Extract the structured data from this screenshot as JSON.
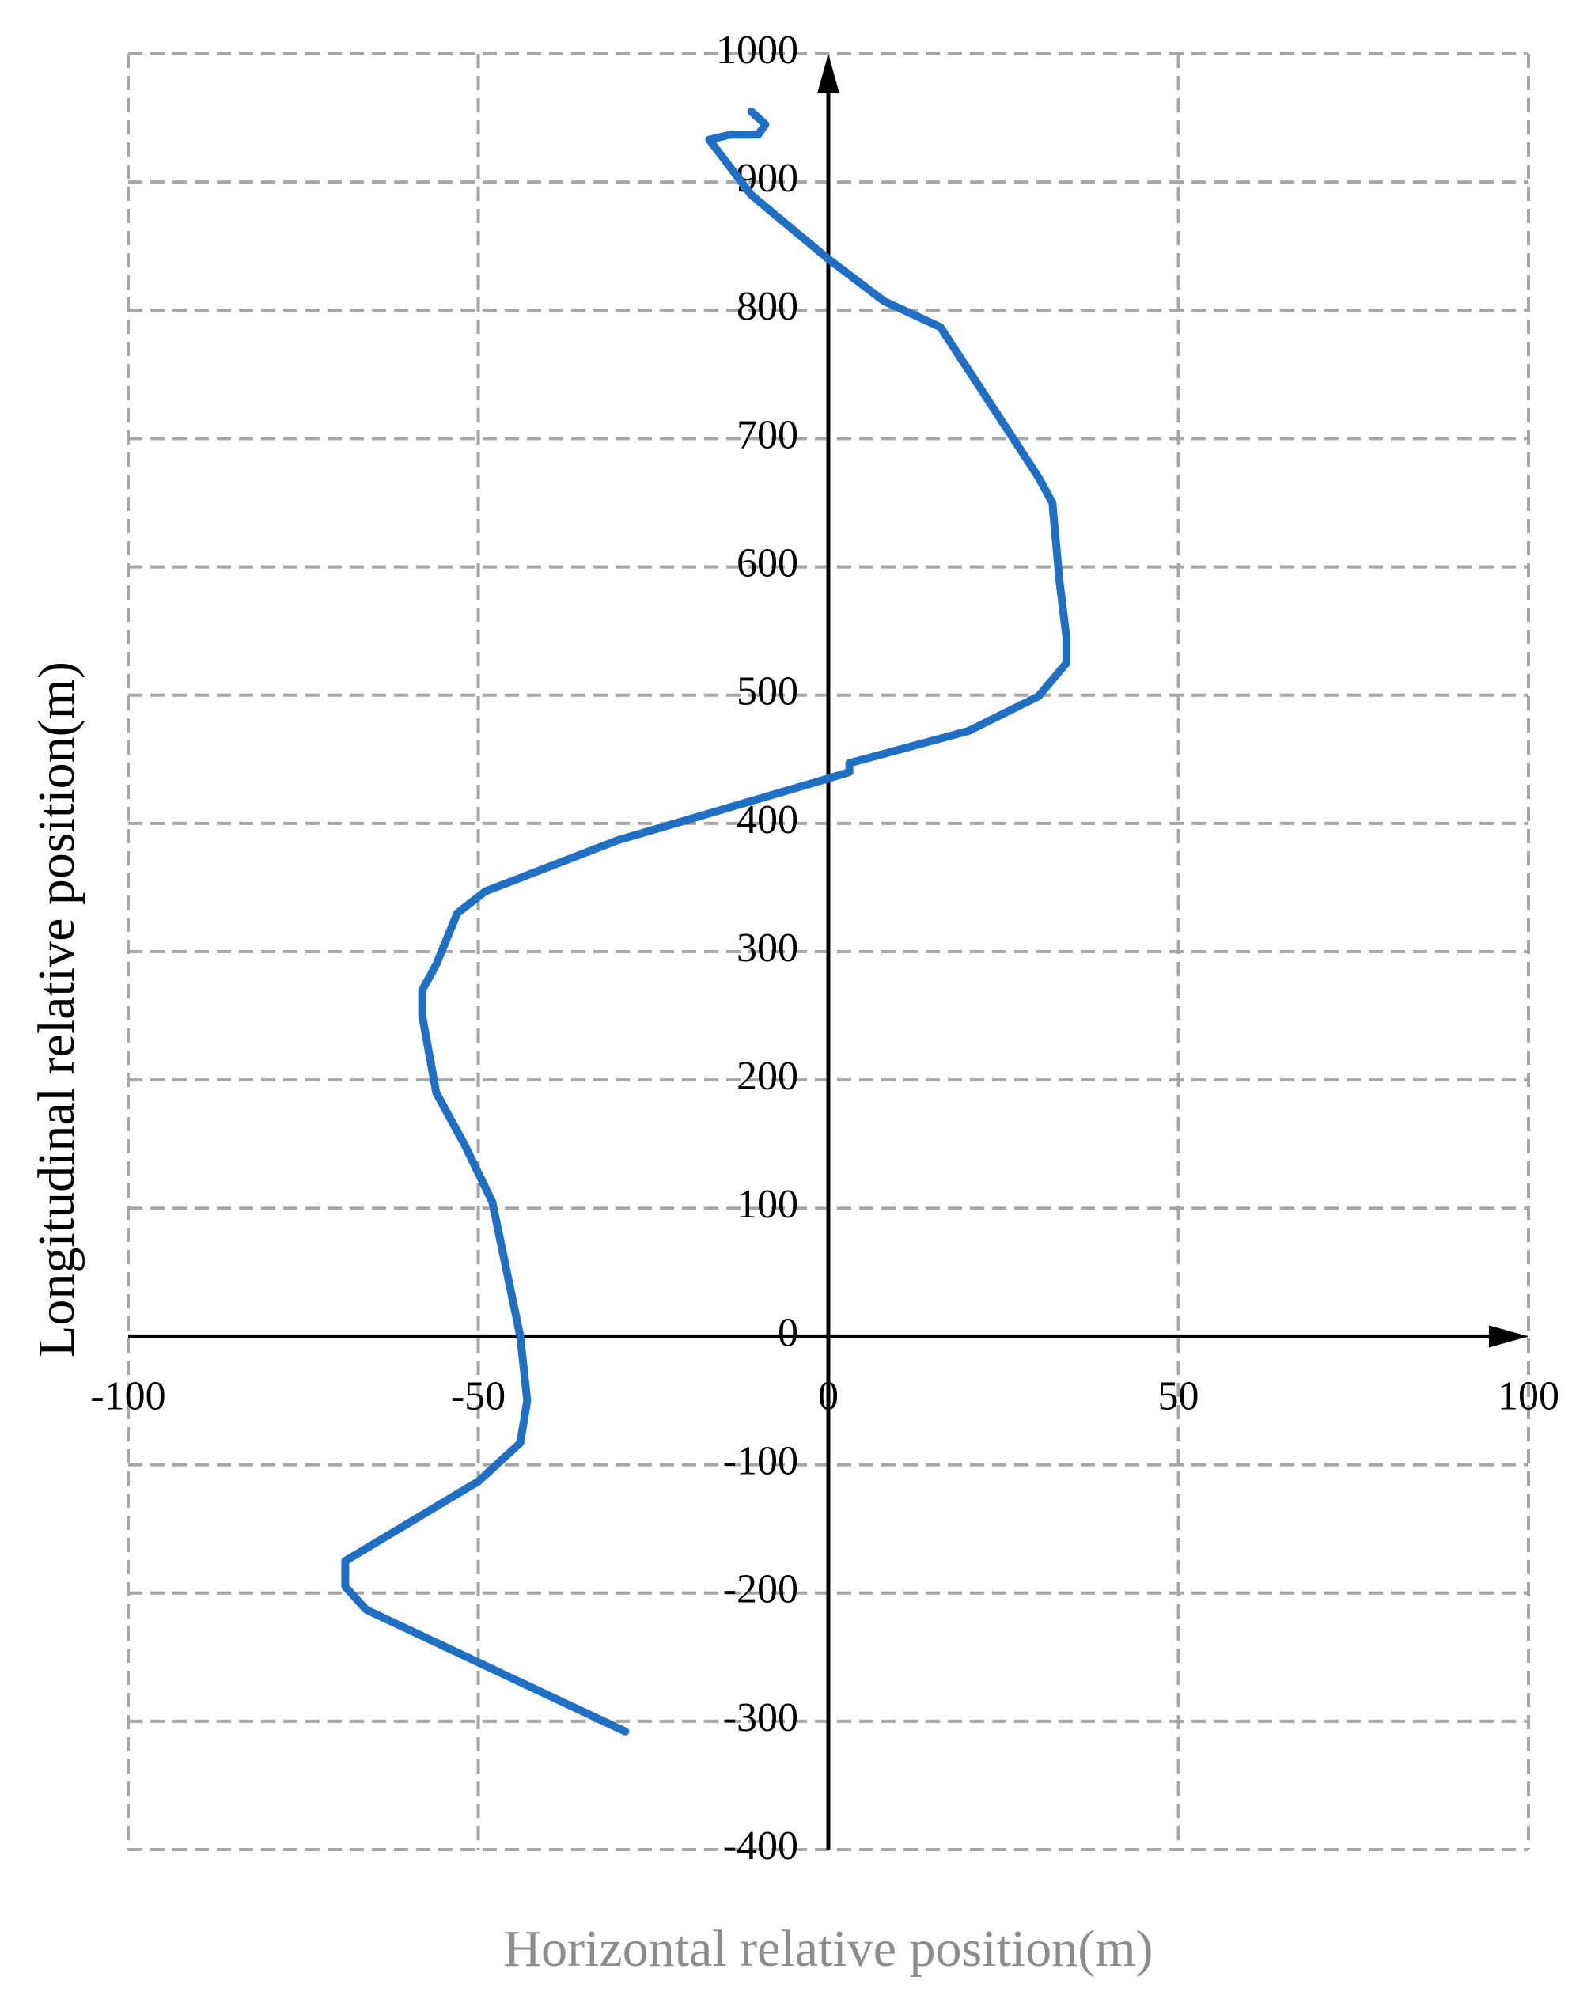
{
  "chart_data": {
    "type": "line",
    "x_label": "Horizontal relative position(m)",
    "y_label": "Longitudinal relative position(m)",
    "x": [
      -29,
      -66,
      -69,
      -69,
      -50,
      -44,
      -43,
      -44,
      -48,
      -52,
      -56,
      -58,
      -58,
      -56,
      -53,
      -49,
      -30,
      0,
      3,
      3,
      20,
      30,
      34,
      34,
      33,
      32,
      30,
      16,
      8,
      0,
      -11,
      -17,
      -14,
      -10,
      -9,
      -11
    ],
    "values": [
      -308,
      -213,
      -195,
      -175,
      -113,
      -83,
      -50,
      0,
      105,
      150,
      190,
      250,
      270,
      290,
      330,
      347,
      387,
      435,
      440,
      447,
      472,
      499,
      525,
      545,
      590,
      650,
      670,
      787,
      807,
      840,
      890,
      933,
      937,
      937,
      945,
      955
    ],
    "color": "#1f6fc4",
    "xlim": [
      -100,
      100
    ],
    "xticks": [
      -100,
      -50,
      0,
      50,
      100
    ],
    "ylim": [
      -400,
      1000
    ],
    "yticks": [
      -400,
      -300,
      -200,
      -100,
      0,
      100,
      200,
      300,
      400,
      500,
      600,
      700,
      800,
      900,
      1000
    ],
    "grid": true
  }
}
